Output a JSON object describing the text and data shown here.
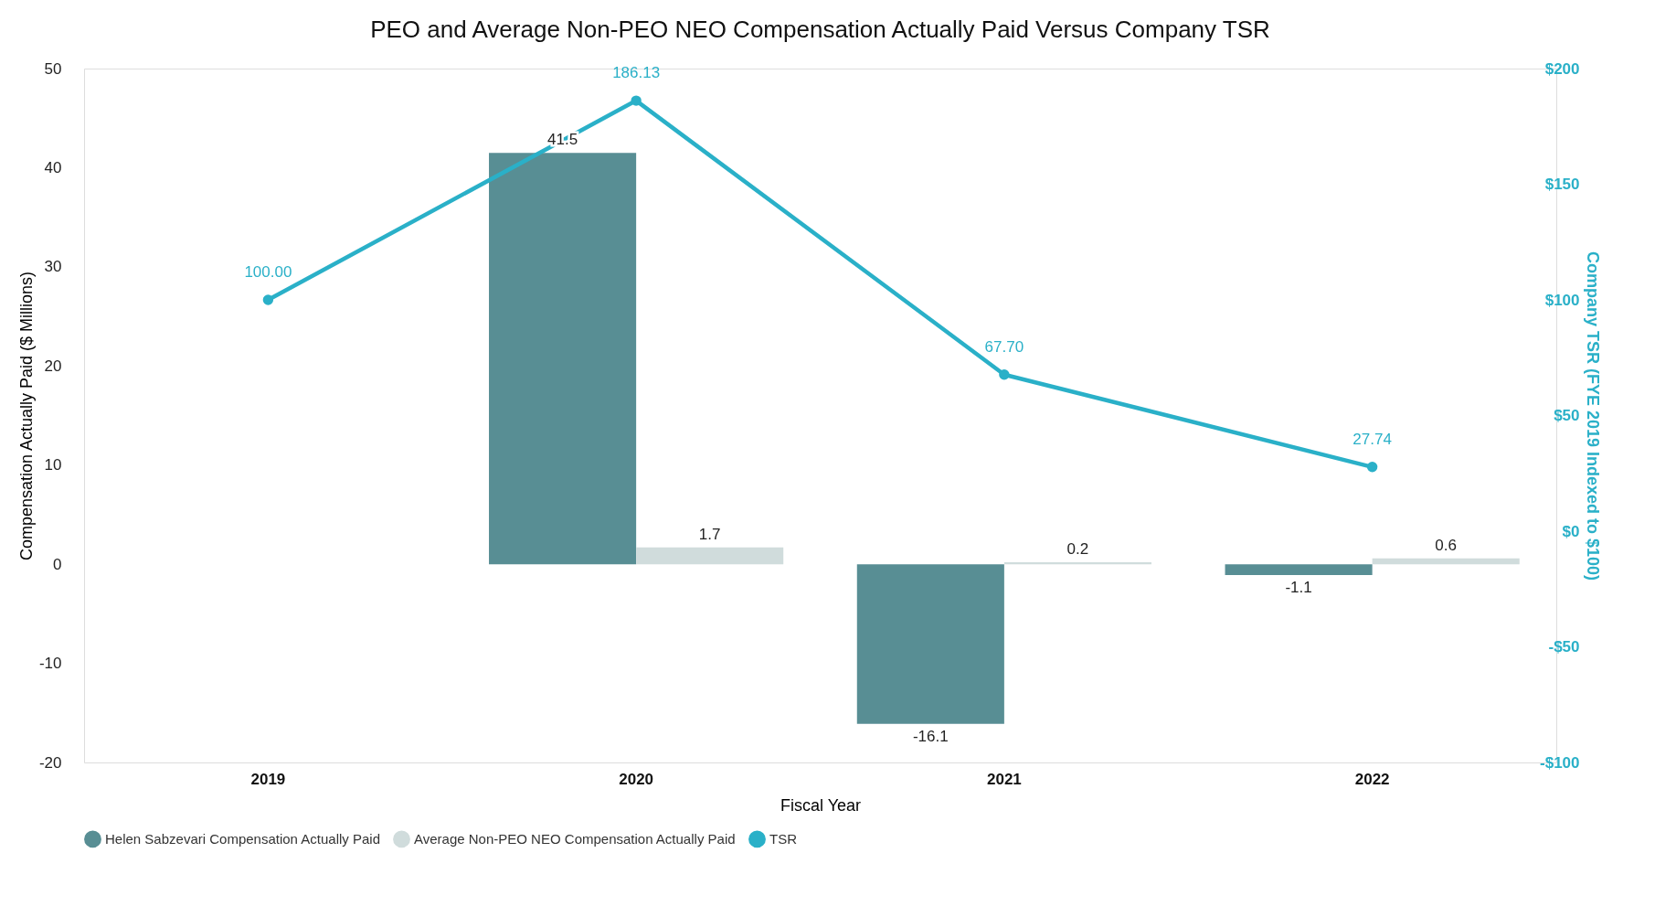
{
  "chart_data": {
    "type": "bar",
    "title": "PEO and Average Non-PEO NEO Compensation Actually Paid Versus Company TSR",
    "categories": [
      "2019",
      "2020",
      "2021",
      "2022"
    ],
    "xlabel": "Fiscal Year",
    "ylabel": "Compensation Actually Paid ($ Millions)",
    "y2label": "Company TSR (FYE 2019 Indexed to $100)",
    "series": [
      {
        "name": "Helen Sabzevari Compensation Actually Paid",
        "color": "#588e94",
        "values": [
          null,
          41.5,
          -16.1,
          -1.1
        ]
      },
      {
        "name": "Average Non-PEO NEO Compensation Actually Paid",
        "color": "#d0dcdc",
        "values": [
          null,
          1.7,
          0.2,
          0.6
        ]
      },
      {
        "name": "TSR",
        "color": "#2ab0c8",
        "type": "line",
        "axis": "y2",
        "marker": "circle",
        "values": [
          100.0,
          186.13,
          67.7,
          27.74
        ],
        "value_labels": [
          "100.00",
          "186.13",
          "67.70",
          "27.74"
        ]
      }
    ],
    "ylim": [
      -20,
      50
    ],
    "yticks": [
      -20,
      -10,
      0,
      10,
      20,
      30,
      40,
      50
    ],
    "y2lim": [
      -100,
      200
    ],
    "y2ticks": [
      {
        "value": -100,
        "label": "-$100"
      },
      {
        "value": -50,
        "label": "-$50"
      },
      {
        "value": 0,
        "label": "$0"
      },
      {
        "value": 50,
        "label": "$50"
      },
      {
        "value": 100,
        "label": "$100"
      },
      {
        "value": 150,
        "label": "$150"
      },
      {
        "value": 200,
        "label": "$200"
      }
    ],
    "data_labels": true,
    "grid": false,
    "legend": "bottom"
  }
}
